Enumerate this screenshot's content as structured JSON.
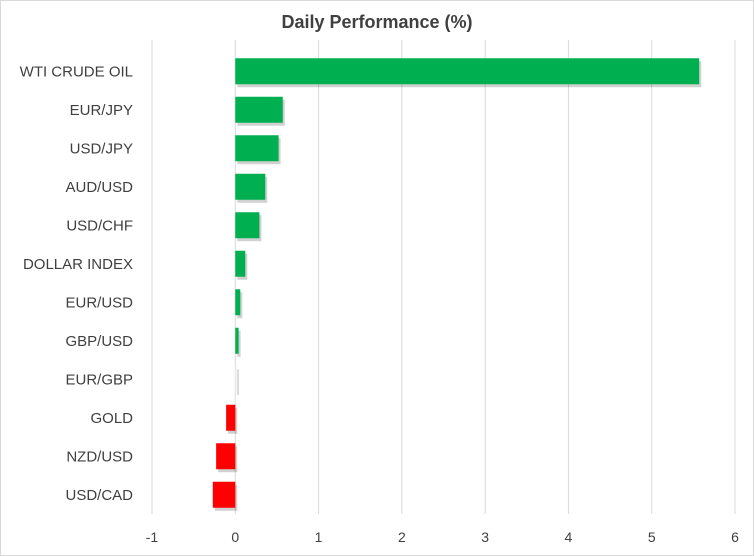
{
  "chart_data": {
    "type": "bar",
    "orientation": "horizontal",
    "title": "Daily Performance (%)",
    "xlabel": "",
    "ylabel": "",
    "categories": [
      "WTI CRUDE OIL",
      "EUR/JPY",
      "USD/JPY",
      "AUD/USD",
      "USD/CHF",
      "DOLLAR INDEX",
      "EUR/USD",
      "GBP/USD",
      "EUR/GBP",
      "GOLD",
      "NZD/USD",
      "USD/CAD"
    ],
    "values": [
      5.57,
      0.57,
      0.52,
      0.36,
      0.29,
      0.12,
      0.06,
      0.04,
      0.01,
      -0.11,
      -0.23,
      -0.27
    ],
    "xlim": [
      -1,
      6
    ],
    "xticks": [
      "-1",
      "0",
      "1",
      "2",
      "3",
      "4",
      "5",
      "6"
    ],
    "grid": true,
    "legend": "none",
    "colors": {
      "positive": "#00b050",
      "negative": "#ff0000",
      "near_zero": "#f2f2f2",
      "grid": "#d9d9d9",
      "text": "#404040"
    }
  }
}
